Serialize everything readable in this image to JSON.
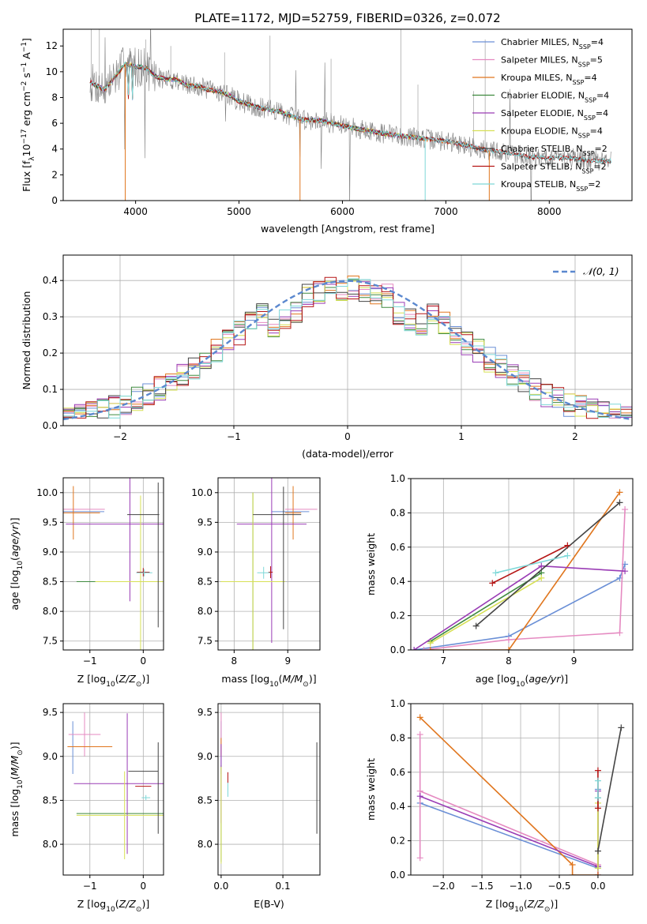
{
  "colors": [
    "#6a8fd6",
    "#e58ac1",
    "#e0761e",
    "#3f8a3f",
    "#9a3cb5",
    "#d7e055",
    "#444444",
    "#b51515",
    "#7ed8d8"
  ],
  "chart_data": [
    {
      "id": "spectrum",
      "type": "line",
      "title": "PLATE=1172, MJD=52759, FIBERID=0326, z=0.072",
      "xlabel": "wavelength [Angstrom, rest frame]",
      "ylabel": "Flux [fλ10⁻¹⁷ erg cm⁻² s⁻¹ A⁻¹]",
      "xlim": [
        3300,
        8800
      ],
      "ylim": [
        0,
        13.3
      ],
      "xticks": [
        4000,
        5000,
        6000,
        7000,
        8000
      ],
      "yticks": [
        0,
        2,
        4,
        6,
        8,
        10,
        12
      ],
      "legend_position": "top-right",
      "observed": {
        "color": "#808080",
        "x": [
          3560,
          3700,
          3800,
          3900,
          4000,
          4100,
          4200,
          4300,
          4400,
          4500,
          4600,
          4700,
          4800,
          4900,
          5000,
          5200,
          5400,
          5600,
          5800,
          6000,
          6200,
          6400,
          6600,
          6800,
          7000,
          7200,
          7400,
          7600,
          7800,
          8000,
          8200,
          8400,
          8600
        ],
        "y": [
          9.2,
          8.6,
          9.6,
          10.6,
          10.4,
          10.3,
          9.6,
          9.4,
          9.4,
          8.9,
          8.9,
          8.6,
          8.5,
          8.2,
          7.7,
          7.2,
          6.9,
          6.3,
          6.2,
          5.8,
          5.5,
          5.2,
          5.0,
          4.8,
          4.6,
          4.3,
          3.9,
          3.7,
          3.4,
          3.3,
          3.3,
          3.1,
          3.1
        ]
      },
      "series": [
        {
          "name": "Chabrier MILES, N_SSP=4",
          "label_main": "Chabrier MILES, N",
          "label_sub": "SSP",
          "label_tail": "=4",
          "xmax": 7420
        },
        {
          "name": "Salpeter MILES, N_SSP=5",
          "label_main": "Salpeter MILES, N",
          "label_sub": "SSP",
          "label_tail": "=5",
          "xmax": 7420
        },
        {
          "name": "Kroupa MILES, N_SSP=4",
          "label_main": "Kroupa MILES, N",
          "label_sub": "SSP",
          "label_tail": "=4",
          "xmax": 7420
        },
        {
          "name": "Chabrier ELODIE, N_SSP=4",
          "label_main": "Chabrier ELODIE, N",
          "label_sub": "SSP",
          "label_tail": "=4",
          "xmax": 6800
        },
        {
          "name": "Salpeter ELODIE, N_SSP=4",
          "label_main": "Salpeter ELODIE, N",
          "label_sub": "SSP",
          "label_tail": "=4",
          "xmax": 6800
        },
        {
          "name": "Kroupa ELODIE, N_SSP=4",
          "label_main": "Kroupa ELODIE, N",
          "label_sub": "SSP",
          "label_tail": "=4",
          "xmax": 6800
        },
        {
          "name": "Chabrier STELIB, N_SSP=2",
          "label_main": "Chabrier STELIB, N",
          "label_sub": "SSP",
          "label_tail": "=2",
          "xmax": 8600
        },
        {
          "name": "Salpeter STELIB, N_SSP=2",
          "label_main": "Salpeter STELIB, N",
          "label_sub": "SSP",
          "label_tail": "=2",
          "xmax": 8600
        },
        {
          "name": "Kroupa STELIB, N_SSP=2",
          "label_main": "Kroupa STELIB, N",
          "label_sub": "SSP",
          "label_tail": "=2",
          "xmax": 8600
        }
      ]
    },
    {
      "id": "residuals",
      "type": "line",
      "xlabel": "(data-model)/error",
      "ylabel": "Normed distribution",
      "xlim": [
        -2.5,
        2.5
      ],
      "ylim": [
        0,
        0.47
      ],
      "xticks": [
        -2,
        -1,
        0,
        1,
        2
      ],
      "yticks": [
        0.0,
        0.1,
        0.2,
        0.3,
        0.4
      ],
      "legend": "𝒩(0, 1)",
      "legend_position": "top-right",
      "gaussian": {
        "mu": 0,
        "sigma": 1,
        "color": "#5b88cf"
      }
    },
    {
      "id": "age-vs-Z",
      "type": "scatter",
      "xlabel": "Z [log10(Z/Z⊙)]",
      "ylabel": "age [log10(age/yr)]",
      "xlim": [
        -1.5,
        0.38
      ],
      "ylim": [
        7.35,
        10.25
      ],
      "xticks": [
        -1,
        0
      ],
      "yticks": [
        7.5,
        8.0,
        8.5,
        9.0,
        9.5,
        10.0
      ],
      "points": [
        {
          "s": 0,
          "x": -1.28,
          "y": 9.68,
          "xerr": 0.55,
          "yerr": 0
        },
        {
          "s": 1,
          "x": -1.27,
          "y": 9.72,
          "xerr": 0.55,
          "yerr": 0
        },
        {
          "s": 2,
          "x": -1.31,
          "y": 9.66,
          "xerr": 0.5,
          "yerr": 0.45
        },
        {
          "s": 3,
          "x": -0.45,
          "y": 8.5,
          "xerr": 0.8,
          "yerr": 0
        },
        {
          "s": 4,
          "x": -0.25,
          "y": 9.47,
          "xerr": 1.2,
          "yerr": 1.3
        },
        {
          "s": 5,
          "x": -0.05,
          "y": 8.5,
          "xerr": 0.85,
          "yerr": 1.45
        },
        {
          "s": 6,
          "x": 0.0,
          "y": 9.63,
          "xerr": 0.3,
          "yerr": 0
        },
        {
          "s": 6,
          "x": 0.28,
          "y": 8.95,
          "xerr": 0,
          "yerr": 1.22
        },
        {
          "s": 7,
          "x": 0.0,
          "y": 8.66,
          "xerr": 0.12,
          "yerr": 0.07
        },
        {
          "s": 8,
          "x": 0.02,
          "y": 8.65,
          "xerr": 0.15,
          "yerr": 0.06
        }
      ]
    },
    {
      "id": "age-vs-mass",
      "type": "scatter",
      "xlabel": "mass [log10(M/M⊙)]",
      "ylabel": "",
      "xlim": [
        7.7,
        9.6
      ],
      "ylim": [
        7.35,
        10.25
      ],
      "xticks": [
        8,
        9
      ],
      "yticks": [
        7.5,
        8.0,
        8.5,
        9.0,
        9.5,
        10.0
      ],
      "points": [
        {
          "s": 0,
          "x": 9.05,
          "y": 9.68,
          "xerr": 0.35,
          "yerr": 0
        },
        {
          "s": 1,
          "x": 9.25,
          "y": 9.72,
          "xerr": 0.3,
          "yerr": 0
        },
        {
          "s": 2,
          "x": 9.1,
          "y": 9.66,
          "xerr": 0.15,
          "yerr": 0.45
        },
        {
          "s": 3,
          "x": 8.35,
          "y": 8.5,
          "xerr": 0.6,
          "yerr": 1.5
        },
        {
          "s": 4,
          "x": 8.7,
          "y": 9.47,
          "xerr": 0.65,
          "yerr": 2.0
        },
        {
          "s": 5,
          "x": 8.35,
          "y": 8.5,
          "xerr": 0.6,
          "yerr": 1.5
        },
        {
          "s": 6,
          "x": 8.8,
          "y": 9.63,
          "xerr": 0.45,
          "yerr": 0
        },
        {
          "s": 6,
          "x": 8.92,
          "y": 8.9,
          "xerr": 0,
          "yerr": 1.2
        },
        {
          "s": 7,
          "x": 8.68,
          "y": 8.66,
          "xerr": 0.04,
          "yerr": 0.1
        },
        {
          "s": 8,
          "x": 8.55,
          "y": 8.65,
          "xerr": 0.12,
          "yerr": 0.1
        }
      ]
    },
    {
      "id": "mass-weight-vs-age",
      "type": "line",
      "xlabel": "age [log10(age/yr)]",
      "ylabel": "mass weight",
      "xlim": [
        6.5,
        9.9
      ],
      "ylim": [
        0,
        1.0
      ],
      "xticks": [
        7,
        8,
        9
      ],
      "yticks": [
        0.0,
        0.2,
        0.4,
        0.6,
        0.8,
        1.0
      ],
      "series": [
        {
          "s": 0,
          "x": [
            6.55,
            8.0,
            9.7,
            9.78
          ],
          "y": [
            0.0,
            0.08,
            0.42,
            0.5
          ]
        },
        {
          "s": 1,
          "x": [
            6.7,
            8.0,
            9.7,
            9.78
          ],
          "y": [
            0.0,
            0.06,
            0.1,
            0.82
          ]
        },
        {
          "s": 2,
          "x": [
            6.8,
            8.0,
            9.7
          ],
          "y": [
            0.0,
            0.0,
            0.92
          ]
        },
        {
          "s": 3,
          "x": [
            6.8,
            8.5
          ],
          "y": [
            0.05,
            0.45
          ]
        },
        {
          "s": 4,
          "x": [
            6.55,
            8.5,
            9.78
          ],
          "y": [
            0.0,
            0.49,
            0.46
          ]
        },
        {
          "s": 5,
          "x": [
            6.8,
            8.5
          ],
          "y": [
            0.04,
            0.42
          ]
        },
        {
          "s": 6,
          "x": [
            7.5,
            9.7
          ],
          "y": [
            0.14,
            0.86
          ]
        },
        {
          "s": 7,
          "x": [
            7.75,
            8.9
          ],
          "y": [
            0.39,
            0.61
          ]
        },
        {
          "s": 8,
          "x": [
            7.8,
            8.9
          ],
          "y": [
            0.45,
            0.55
          ]
        }
      ]
    },
    {
      "id": "mass-vs-Z",
      "type": "scatter",
      "xlabel": "Z [log10(Z/Z⊙)]",
      "ylabel": "mass [log10(M/M⊙)]",
      "xlim": [
        -1.5,
        0.38
      ],
      "ylim": [
        7.65,
        9.6
      ],
      "xticks": [
        -1,
        0
      ],
      "yticks": [
        8.0,
        8.5,
        9.0,
        9.5
      ],
      "points": [
        {
          "s": 0,
          "x": -1.32,
          "y": 9.1,
          "xerr": 0,
          "yerr": 0.3
        },
        {
          "s": 1,
          "x": -1.1,
          "y": 9.25,
          "xerr": 0.3,
          "yerr": 0.25
        },
        {
          "s": 2,
          "x": -1.0,
          "y": 9.11,
          "xerr": 0.42,
          "yerr": 0
        },
        {
          "s": 3,
          "x": -0.4,
          "y": 8.35,
          "xerr": 0.85,
          "yerr": 0
        },
        {
          "s": 4,
          "x": -0.3,
          "y": 8.69,
          "xerr": 1.0,
          "yerr": 0.8
        },
        {
          "s": 5,
          "x": -0.35,
          "y": 8.33,
          "xerr": 0.9,
          "yerr": 0.5
        },
        {
          "s": 6,
          "x": 0.0,
          "y": 8.83,
          "xerr": 0.28,
          "yerr": 0
        },
        {
          "s": 6,
          "x": 0.28,
          "y": 8.64,
          "xerr": 0,
          "yerr": 0.52
        },
        {
          "s": 7,
          "x": 0.0,
          "y": 8.66,
          "xerr": 0.15,
          "yerr": 0
        },
        {
          "s": 8,
          "x": 0.05,
          "y": 8.53,
          "xerr": 0.08,
          "yerr": 0.03
        }
      ]
    },
    {
      "id": "mass-vs-EBV",
      "type": "scatter",
      "xlabel": "E(B-V)",
      "ylabel": "",
      "xlim": [
        -0.005,
        0.16
      ],
      "ylim": [
        7.65,
        9.6
      ],
      "xticks": [
        0.0,
        0.1
      ],
      "yticks": [
        8.0,
        8.5,
        9.0,
        9.5
      ],
      "points": [
        {
          "s": 0,
          "x": 0.0,
          "y": 9.1,
          "xerr": 0,
          "yerr": 0.3
        },
        {
          "s": 1,
          "x": 0.0,
          "y": 9.25,
          "xerr": 0,
          "yerr": 0.25
        },
        {
          "s": 2,
          "x": 0.0,
          "y": 9.11,
          "xerr": 0,
          "yerr": 0.1
        },
        {
          "s": 3,
          "x": 0.0,
          "y": 8.35,
          "xerr": 0,
          "yerr": 0.55
        },
        {
          "s": 4,
          "x": 0.0,
          "y": 8.69,
          "xerr": 0,
          "yerr": 0.45
        },
        {
          "s": 5,
          "x": 0.0,
          "y": 8.33,
          "xerr": 0,
          "yerr": 0.55
        },
        {
          "s": 6,
          "x": 0.155,
          "y": 8.64,
          "xerr": 0,
          "yerr": 0.52
        },
        {
          "s": 7,
          "x": 0.011,
          "y": 8.72,
          "xerr": 0,
          "yerr": 0.1
        },
        {
          "s": 8,
          "x": 0.011,
          "y": 8.62,
          "xerr": 0,
          "yerr": 0.08
        }
      ]
    },
    {
      "id": "mass-weight-vs-Z",
      "type": "line",
      "xlabel": "Z [log10(Z/Z⊙)]",
      "ylabel": "mass weight",
      "xlim": [
        -2.42,
        0.45
      ],
      "ylim": [
        0,
        1.0
      ],
      "xticks": [
        -2.0,
        -1.5,
        -1.0,
        -0.5,
        0.0
      ],
      "yticks": [
        0.0,
        0.2,
        0.4,
        0.6,
        0.8,
        1.0
      ],
      "series": [
        {
          "s": 0,
          "x": [
            -2.3,
            0.0,
            0.0,
            0.0
          ],
          "y": [
            0.42,
            0.04,
            0.0,
            0.5
          ]
        },
        {
          "s": 1,
          "x": [
            -2.3,
            -2.3,
            -2.3,
            0.0,
            0.0
          ],
          "y": [
            0.82,
            0.1,
            0.49,
            0.06,
            0.0
          ]
        },
        {
          "s": 2,
          "x": [
            -2.3,
            -0.33,
            -0.33,
            0.0
          ],
          "y": [
            0.92,
            0.06,
            0.0,
            0.0
          ]
        },
        {
          "s": 3,
          "x": [
            0.0,
            0.0
          ],
          "y": [
            0.05,
            0.45
          ]
        },
        {
          "s": 4,
          "x": [
            -2.3,
            0.0,
            0.0
          ],
          "y": [
            0.46,
            0.05,
            0.49
          ]
        },
        {
          "s": 5,
          "x": [
            0.0,
            0.0
          ],
          "y": [
            0.04,
            0.42
          ]
        },
        {
          "s": 6,
          "x": [
            0.0,
            0.3
          ],
          "y": [
            0.14,
            0.86
          ]
        },
        {
          "s": 7,
          "x": [
            0.0,
            0.0
          ],
          "y": [
            0.39,
            0.61
          ]
        },
        {
          "s": 8,
          "x": [
            0.0,
            0.0
          ],
          "y": [
            0.45,
            0.55
          ]
        }
      ]
    }
  ]
}
